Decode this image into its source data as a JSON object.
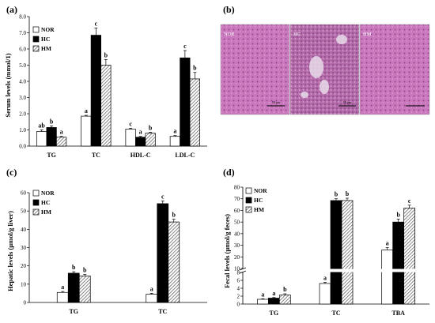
{
  "colors": {
    "nor": "#ffffff",
    "hc": "#000000",
    "hm_hatch": "#555555",
    "tissue": "#c978bd"
  },
  "legend": [
    "NOR",
    "HC",
    "HM"
  ],
  "chart_data": [
    {
      "panel": "(a)",
      "type": "bar",
      "ylabel": "Serum levels (mmol/1)",
      "ylim": [
        0,
        8
      ],
      "yticks": [
        "0.0",
        "1.0",
        "2.0",
        "3.0",
        "4.0",
        "5.0",
        "6.0",
        "7.0",
        "8.0"
      ],
      "categories": [
        "TG",
        "TC",
        "HDL-C",
        "LDL-C"
      ],
      "series": [
        {
          "name": "NOR",
          "values": [
            0.9,
            1.85,
            1.05,
            0.6
          ],
          "errors": [
            0.1,
            0.05,
            0.05,
            0.05
          ],
          "sig": [
            "ab",
            "a",
            "c",
            "a"
          ]
        },
        {
          "name": "HC",
          "values": [
            1.15,
            6.85,
            0.55,
            5.45
          ],
          "errors": [
            0.1,
            0.45,
            0.05,
            0.45
          ],
          "sig": [
            "b",
            "c",
            "a",
            "c"
          ]
        },
        {
          "name": "HM",
          "values": [
            0.55,
            5.0,
            0.8,
            4.15
          ],
          "errors": [
            0.05,
            0.35,
            0.05,
            0.4
          ],
          "sig": [
            "a",
            "b",
            "b",
            "b"
          ]
        }
      ]
    },
    {
      "panel": "(b)",
      "type": "micrograph",
      "labels": [
        "NOR",
        "HC",
        "HM"
      ],
      "scale_labels": [
        "50 μm",
        "50 μm",
        ""
      ]
    },
    {
      "panel": "(c)",
      "type": "bar",
      "ylabel": "Hepatic levels (μmol/g liver)",
      "ylim": [
        0,
        60
      ],
      "yticks": [
        "0",
        "10",
        "20",
        "30",
        "40",
        "50",
        "60"
      ],
      "categories": [
        "TG",
        "TC"
      ],
      "series": [
        {
          "name": "NOR",
          "values": [
            5.5,
            4.5
          ],
          "errors": [
            0.5,
            0.5
          ],
          "sig": [
            "a",
            "a"
          ]
        },
        {
          "name": "HC",
          "values": [
            16.0,
            54.0
          ],
          "errors": [
            0.8,
            1.5
          ],
          "sig": [
            "b",
            "c"
          ]
        },
        {
          "name": "HM",
          "values": [
            14.5,
            44.0
          ],
          "errors": [
            0.8,
            1.5
          ],
          "sig": [
            "b",
            "b"
          ]
        }
      ]
    },
    {
      "panel": "(d)",
      "type": "bar",
      "ylabel": "Fecal levels (μmol/g feces)",
      "broken_axis": true,
      "upper_range": [
        10,
        80
      ],
      "lower_range": [
        0,
        8
      ],
      "upper_ticks": [
        "10",
        "20",
        "30",
        "40",
        "50",
        "60",
        "70",
        "80"
      ],
      "lower_ticks": [
        "0",
        "2",
        "4",
        "6",
        "8"
      ],
      "categories": [
        "TG",
        "TC",
        "TBA"
      ],
      "series": [
        {
          "name": "NOR",
          "values": [
            1.2,
            5.2,
            26.0
          ],
          "errors": [
            0.15,
            0.3,
            2.0
          ],
          "sig": [
            "a",
            "a",
            "a"
          ]
        },
        {
          "name": "HC",
          "values": [
            1.5,
            68.5,
            50.0
          ],
          "errors": [
            0.15,
            1.5,
            2.5
          ],
          "sig": [
            "a",
            "b",
            "b"
          ]
        },
        {
          "name": "HM",
          "values": [
            2.3,
            68.5,
            62.0
          ],
          "errors": [
            0.3,
            2.0,
            2.5
          ],
          "sig": [
            "b",
            "b",
            "c"
          ]
        }
      ]
    }
  ]
}
